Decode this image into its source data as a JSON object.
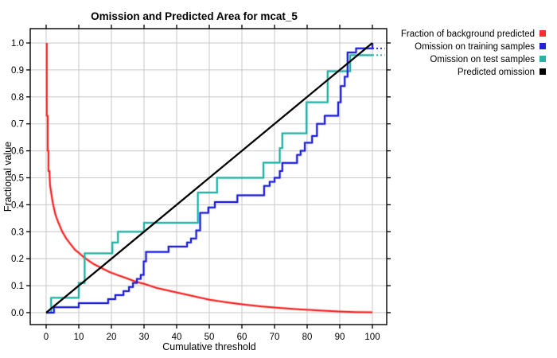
{
  "chart_data": {
    "type": "line",
    "title": "Omission and Predicted Area for mcat_5",
    "xlabel": "Cumulative threshold",
    "ylabel": "Fractional value",
    "xlim": [
      -4.88,
      104.39
    ],
    "ylim": [
      -0.0443,
      1.0531
    ],
    "x_ticks": [
      0,
      10,
      20,
      30,
      40,
      50,
      60,
      70,
      80,
      90,
      100
    ],
    "x_tick_labels": [
      "0",
      "10",
      "20",
      "30",
      "40",
      "50",
      "60",
      "70",
      "80",
      "90",
      "100"
    ],
    "y_ticks": [
      0.0,
      0.1,
      0.2,
      0.3,
      0.4,
      0.5,
      0.6,
      0.7,
      0.8,
      0.9,
      1.0
    ],
    "y_tick_labels": [
      "0.0",
      "0.1",
      "0.2",
      "0.3",
      "0.4",
      "0.5",
      "0.6",
      "0.7",
      "0.8",
      "0.9",
      "1.0"
    ],
    "grid": true,
    "grid_color": "#c8c8c8",
    "border_color": "#000000",
    "background": "#ffffff",
    "legend_position": "outside-top-right",
    "series": [
      {
        "name": "Fraction of background predicted",
        "color": "#fb2e2e",
        "points": [
          [
            0.2,
            1.0
          ],
          [
            0.2,
            0.73
          ],
          [
            0.45,
            0.73
          ],
          [
            0.45,
            0.6
          ],
          [
            0.7,
            0.6
          ],
          [
            0.7,
            0.525
          ],
          [
            1.0,
            0.525
          ],
          [
            1.2,
            0.473
          ],
          [
            1.6,
            0.439
          ],
          [
            2.0,
            0.409
          ],
          [
            2.8,
            0.365
          ],
          [
            3.7,
            0.335
          ],
          [
            4.9,
            0.301
          ],
          [
            6.1,
            0.276
          ],
          [
            7.3,
            0.257
          ],
          [
            8.9,
            0.232
          ],
          [
            10,
            0.222
          ],
          [
            11.4,
            0.207
          ],
          [
            13,
            0.193
          ],
          [
            14.6,
            0.18
          ],
          [
            17.1,
            0.165
          ],
          [
            19.5,
            0.15
          ],
          [
            22,
            0.139
          ],
          [
            24.4,
            0.129
          ],
          [
            27.6,
            0.114
          ],
          [
            30,
            0.107
          ],
          [
            34,
            0.091
          ],
          [
            40,
            0.075
          ],
          [
            45.5,
            0.06
          ],
          [
            50,
            0.048
          ],
          [
            55,
            0.039
          ],
          [
            60,
            0.031
          ],
          [
            66,
            0.023
          ],
          [
            72,
            0.017
          ],
          [
            78,
            0.012
          ],
          [
            84,
            0.008
          ],
          [
            90,
            0.004
          ],
          [
            95,
            0.002
          ],
          [
            100,
            0.001
          ]
        ]
      },
      {
        "name": "Omission on training samples",
        "color": "#2323de",
        "points": [
          [
            0,
            0
          ],
          [
            2.4,
            0
          ],
          [
            2.4,
            0.02
          ],
          [
            10,
            0.02
          ],
          [
            10,
            0.035
          ],
          [
            19,
            0.035
          ],
          [
            19,
            0.05
          ],
          [
            21.2,
            0.05
          ],
          [
            21.2,
            0.065
          ],
          [
            23.7,
            0.065
          ],
          [
            23.7,
            0.08
          ],
          [
            25.4,
            0.08
          ],
          [
            25.4,
            0.095
          ],
          [
            26.6,
            0.095
          ],
          [
            26.6,
            0.11
          ],
          [
            27.8,
            0.11
          ],
          [
            27.8,
            0.125
          ],
          [
            29,
            0.125
          ],
          [
            29,
            0.14
          ],
          [
            29.9,
            0.14
          ],
          [
            29.9,
            0.19
          ],
          [
            30.6,
            0.19
          ],
          [
            30.6,
            0.225
          ],
          [
            37.5,
            0.225
          ],
          [
            37.5,
            0.245
          ],
          [
            43.2,
            0.245
          ],
          [
            43.2,
            0.26
          ],
          [
            44.4,
            0.26
          ],
          [
            44.4,
            0.275
          ],
          [
            46,
            0.275
          ],
          [
            46,
            0.305
          ],
          [
            47.2,
            0.305
          ],
          [
            47.2,
            0.37
          ],
          [
            49.7,
            0.37
          ],
          [
            49.7,
            0.39
          ],
          [
            51.7,
            0.39
          ],
          [
            51.7,
            0.41
          ],
          [
            58.6,
            0.41
          ],
          [
            58.6,
            0.435
          ],
          [
            66.8,
            0.435
          ],
          [
            66.8,
            0.47
          ],
          [
            68.5,
            0.47
          ],
          [
            68.5,
            0.485
          ],
          [
            70,
            0.485
          ],
          [
            70,
            0.5
          ],
          [
            71.6,
            0.5
          ],
          [
            71.6,
            0.525
          ],
          [
            72.4,
            0.525
          ],
          [
            72.4,
            0.555
          ],
          [
            76.9,
            0.555
          ],
          [
            76.9,
            0.585
          ],
          [
            78,
            0.585
          ],
          [
            78,
            0.6
          ],
          [
            79.3,
            0.6
          ],
          [
            79.3,
            0.63
          ],
          [
            81.5,
            0.63
          ],
          [
            81.5,
            0.655
          ],
          [
            83,
            0.655
          ],
          [
            83,
            0.7
          ],
          [
            85.4,
            0.7
          ],
          [
            85.4,
            0.73
          ],
          [
            89.5,
            0.73
          ],
          [
            89.5,
            0.78
          ],
          [
            90.3,
            0.78
          ],
          [
            90.3,
            0.84
          ],
          [
            91.5,
            0.84
          ],
          [
            91.5,
            0.875
          ],
          [
            92.4,
            0.875
          ],
          [
            92.4,
            0.965
          ],
          [
            95,
            0.965
          ],
          [
            95,
            0.98
          ],
          [
            100,
            0.98
          ],
          [
            100,
            1.0
          ]
        ],
        "dashed_extension": [
          [
            100,
            0.98
          ],
          [
            103.8,
            0.98
          ]
        ]
      },
      {
        "name": "Omission on test samples",
        "color": "#26b3a7",
        "points": [
          [
            0,
            0
          ],
          [
            1.5,
            0
          ],
          [
            1.5,
            0.055
          ],
          [
            10,
            0.055
          ],
          [
            10,
            0.11
          ],
          [
            11.8,
            0.11
          ],
          [
            11.8,
            0.22
          ],
          [
            20.3,
            0.22
          ],
          [
            20.3,
            0.26
          ],
          [
            22,
            0.26
          ],
          [
            22,
            0.3
          ],
          [
            30,
            0.3
          ],
          [
            30,
            0.333
          ],
          [
            46.5,
            0.333
          ],
          [
            46.5,
            0.445
          ],
          [
            52.4,
            0.445
          ],
          [
            52.4,
            0.5
          ],
          [
            66.6,
            0.5
          ],
          [
            66.6,
            0.556
          ],
          [
            71.6,
            0.556
          ],
          [
            71.6,
            0.61
          ],
          [
            72.4,
            0.61
          ],
          [
            72.4,
            0.665
          ],
          [
            79.8,
            0.665
          ],
          [
            79.8,
            0.78
          ],
          [
            86.3,
            0.78
          ],
          [
            86.3,
            0.895
          ],
          [
            93.2,
            0.895
          ],
          [
            93.2,
            0.955
          ],
          [
            100,
            0.955
          ]
        ],
        "dashed_extension": [
          [
            100,
            0.955
          ],
          [
            103.8,
            0.955
          ]
        ]
      },
      {
        "name": "Predicted omission",
        "color": "#000000",
        "points": [
          [
            0,
            0
          ],
          [
            100,
            1.0
          ]
        ]
      }
    ]
  }
}
